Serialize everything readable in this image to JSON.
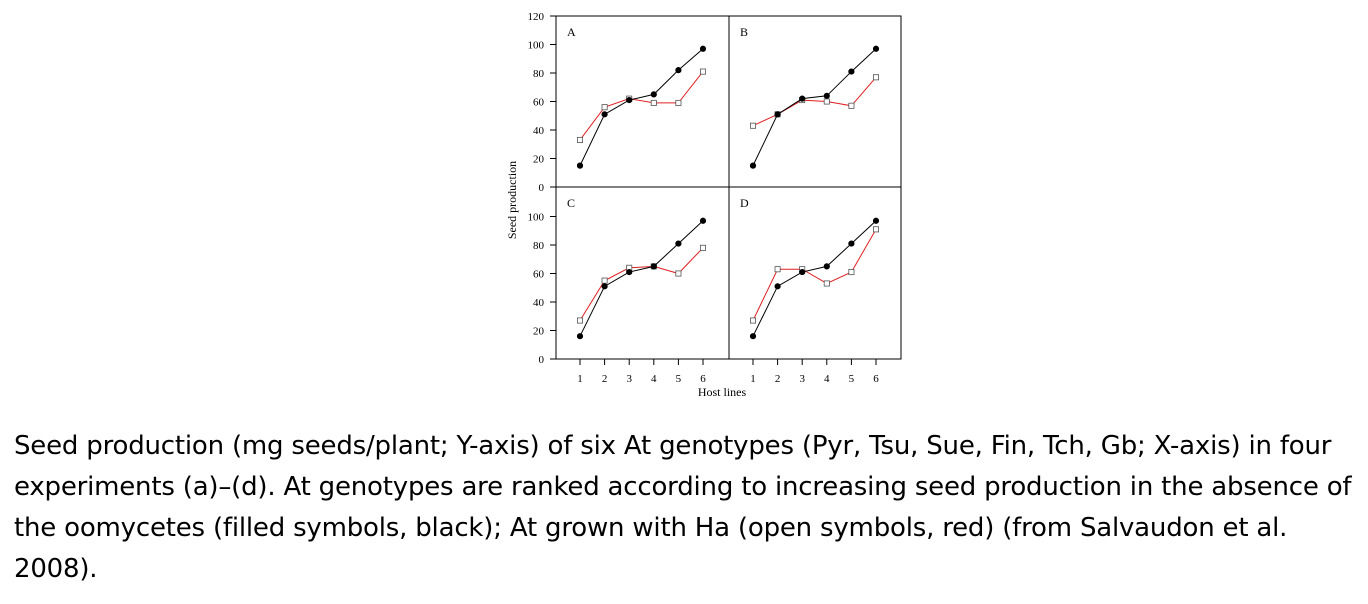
{
  "chart_data": {
    "type": "line",
    "ylabel": "Seed production",
    "xlabel": "Host lines",
    "x": [
      1,
      2,
      3,
      4,
      5,
      6
    ],
    "ylim": [
      0,
      120
    ],
    "y_ticks": [
      0,
      20,
      40,
      60,
      80,
      100,
      120
    ],
    "colors": {
      "filled": "#000000",
      "open": "#e02020"
    },
    "panels": [
      {
        "label": "A",
        "series": [
          {
            "style": "filled",
            "values": [
              15,
              51,
              61,
              65,
              82,
              97
            ]
          },
          {
            "style": "open",
            "values": [
              33,
              56,
              62,
              59,
              59,
              81
            ]
          }
        ]
      },
      {
        "label": "B",
        "series": [
          {
            "style": "filled",
            "values": [
              15,
              51,
              62,
              64,
              81,
              97
            ]
          },
          {
            "style": "open",
            "values": [
              43,
              51,
              61,
              60,
              57,
              77
            ]
          }
        ]
      },
      {
        "label": "C",
        "series": [
          {
            "style": "filled",
            "values": [
              16,
              51,
              61,
              65,
              81,
              97
            ]
          },
          {
            "style": "open",
            "values": [
              27,
              55,
              64,
              65,
              60,
              78
            ]
          }
        ]
      },
      {
        "label": "D",
        "series": [
          {
            "style": "filled",
            "values": [
              16,
              51,
              61,
              65,
              81,
              97
            ]
          },
          {
            "style": "open",
            "values": [
              27,
              63,
              63,
              53,
              61,
              91
            ]
          }
        ]
      }
    ]
  },
  "caption": "Seed production (mg seeds/plant; Y-axis) of six At genotypes (Pyr, Tsu, Sue, Fin, Tch, Gb; X-axis) in four experiments (a)–(d). At genotypes are ranked according to increasing seed production in the absence of the oomycetes (filled symbols, black); At grown with Ha (open symbols, red) (from Salvaudon et al. 2008)."
}
